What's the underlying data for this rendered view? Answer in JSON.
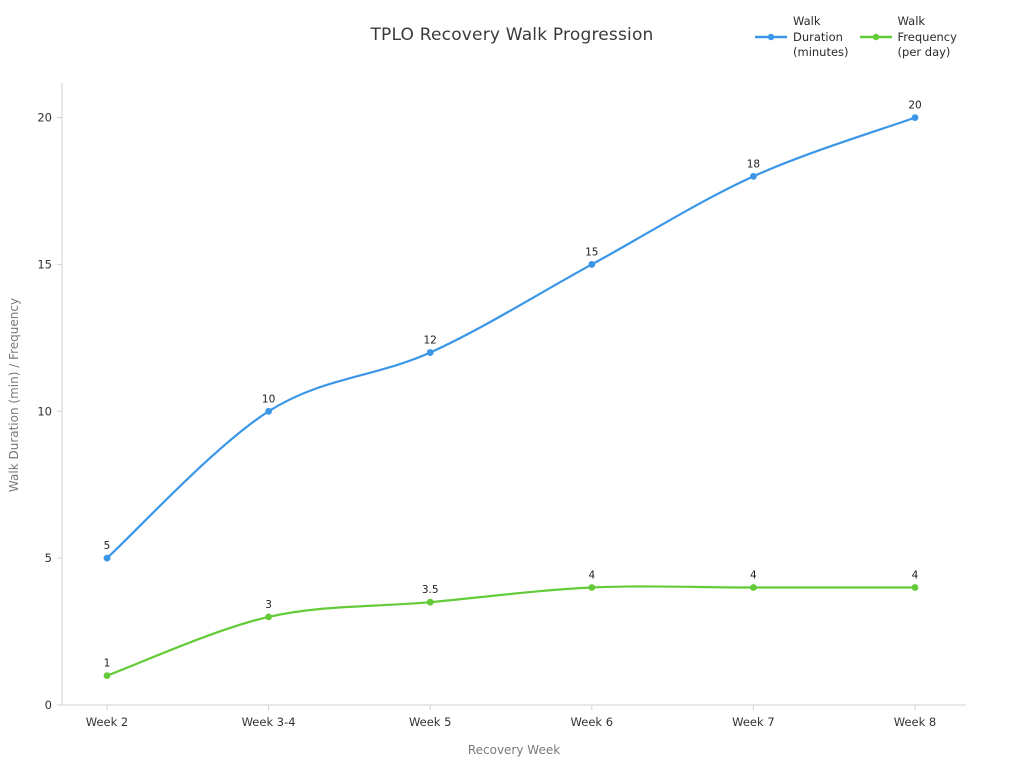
{
  "title": "TPLO Recovery Walk Progression",
  "legend": {
    "items": [
      {
        "label": "Walk\nDuration\n(minutes)",
        "color": "#3b96e8"
      },
      {
        "label": "Walk\nFrequency\n(per day)",
        "color": "#64cb38"
      }
    ]
  },
  "chart_data": {
    "type": "line",
    "title": "TPLO Recovery Walk Progression",
    "categories": [
      "Week 2",
      "Week 3-4",
      "Week 5",
      "Week 6",
      "Week 7",
      "Week 8"
    ],
    "series": [
      {
        "name": "Walk Duration (minutes)",
        "color": "#3b96e8",
        "values": [
          5,
          10,
          12,
          15,
          18,
          20
        ]
      },
      {
        "name": "Walk Frequency (per day)",
        "color": "#64cb38",
        "values": [
          1,
          3,
          3.5,
          4,
          4,
          4
        ]
      }
    ],
    "xlabel": "Recovery Week",
    "ylabel": "Walk Duration (min) / Frequency",
    "yticks": [
      0,
      5,
      10,
      15,
      20
    ],
    "ylim": [
      0,
      21.2
    ],
    "grid": false,
    "legend_position": "top-right",
    "line_shape": "spline",
    "point_labels": true,
    "axis_color": "#d2d2d2"
  }
}
